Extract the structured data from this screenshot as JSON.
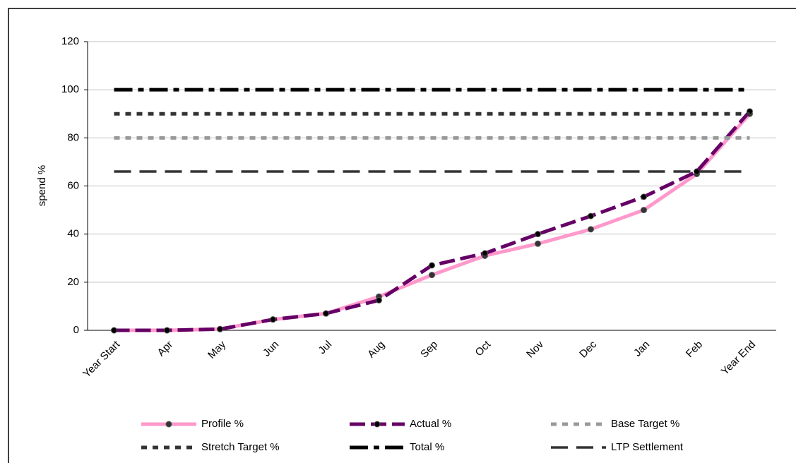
{
  "chart_data": {
    "type": "line",
    "y_label": "spend %",
    "categories": [
      "Year Start",
      "Apr",
      "May",
      "Jun",
      "Jul",
      "Aug",
      "Sep",
      "Oct",
      "Nov",
      "Dec",
      "Jan",
      "Feb",
      "Year End"
    ],
    "ylim": [
      0,
      120
    ],
    "yticks": [
      0,
      20,
      40,
      60,
      80,
      100,
      120
    ],
    "grid": true,
    "series": [
      {
        "name": "Profile %",
        "color": "#ff99cc",
        "dash": "solid",
        "marker": true,
        "values": [
          0,
          0,
          0.5,
          4.5,
          7,
          14,
          23,
          31,
          36,
          42,
          50,
          65,
          90
        ]
      },
      {
        "name": "Actual %",
        "color": "#660066",
        "dash": "dashed",
        "marker": true,
        "values": [
          0,
          0,
          0.5,
          4.5,
          7,
          12.5,
          27,
          32,
          40,
          47.5,
          55.5,
          66,
          91
        ]
      },
      {
        "name": "Base Target %",
        "color": "#999999",
        "dash": "dotted",
        "marker": false,
        "values": [
          80,
          80,
          80,
          80,
          80,
          80,
          80,
          80,
          80,
          80,
          80,
          80,
          80
        ]
      },
      {
        "name": "Stretch Target %",
        "color": "#333333",
        "dash": "dotted",
        "marker": false,
        "values": [
          90,
          90,
          90,
          90,
          90,
          90,
          90,
          90,
          90,
          90,
          90,
          90,
          90
        ]
      },
      {
        "name": "Total %",
        "color": "#000000",
        "dash": "dashdot",
        "marker": false,
        "values": [
          100,
          100,
          100,
          100,
          100,
          100,
          100,
          100,
          100,
          100,
          100,
          100,
          100
        ]
      },
      {
        "name": "LTP Settlement",
        "color": "#333333",
        "dash": "longdash",
        "marker": false,
        "values": [
          66,
          66,
          66,
          66,
          66,
          66,
          66,
          66,
          66,
          66,
          66,
          66,
          66
        ]
      }
    ]
  }
}
